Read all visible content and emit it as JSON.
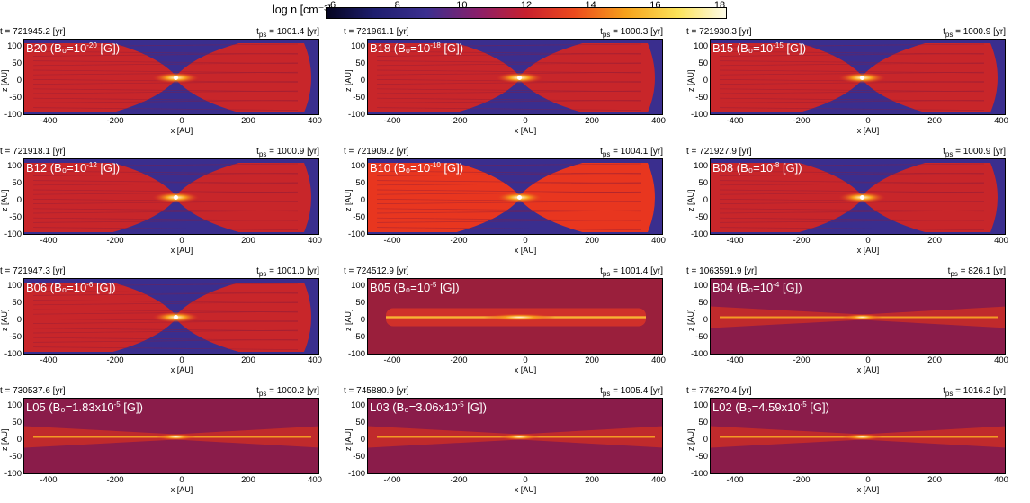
{
  "colorbar": {
    "title": "log n [cm⁻³]",
    "ticks": [
      "6",
      "8",
      "10",
      "12",
      "14",
      "16",
      "18"
    ]
  },
  "axes": {
    "xlabel": "x [AU]",
    "ylabel": "z [AU]",
    "xticks": [
      "-400",
      "-200",
      "0",
      "200",
      "400"
    ],
    "yticks": [
      "100",
      "50",
      "0",
      "-50",
      "-100"
    ]
  },
  "panels": [
    {
      "id": "B20",
      "label": "B20 (B₀=10",
      "exp": "-20",
      "tail": " [G])",
      "time": "t = 721945.2 [yr]",
      "tps": "1001.4 [yr]",
      "style": "hour"
    },
    {
      "id": "B18",
      "label": "B18 (B₀=10",
      "exp": "-18",
      "tail": " [G])",
      "time": "t = 721961.1 [yr]",
      "tps": "1000.3 [yr]",
      "style": "hour"
    },
    {
      "id": "B15",
      "label": "B15 (B₀=10",
      "exp": "-15",
      "tail": " [G])",
      "time": "t = 721930.3 [yr]",
      "tps": "1000.9 [yr]",
      "style": "hour"
    },
    {
      "id": "B12",
      "label": "B12 (B₀=10",
      "exp": "-12",
      "tail": " [G])",
      "time": "t = 721918.1 [yr]",
      "tps": "1000.9 [yr]",
      "style": "hour"
    },
    {
      "id": "B10",
      "label": "B10 (B₀=10",
      "exp": "-10",
      "tail": " [G])",
      "time": "t = 721909.2 [yr]",
      "tps": "1004.1 [yr]",
      "style": "bright"
    },
    {
      "id": "B08",
      "label": "B08 (B₀=10",
      "exp": "-8",
      "tail": " [G])",
      "time": "t = 721927.9 [yr]",
      "tps": "1000.9 [yr]",
      "style": "hour"
    },
    {
      "id": "B06",
      "label": "B06 (B₀=10",
      "exp": "-6",
      "tail": " [G])",
      "time": "t = 721947.3 [yr]",
      "tps": "1001.0 [yr]",
      "style": "hour"
    },
    {
      "id": "B05",
      "label": "B05 (B₀=10",
      "exp": "-5",
      "tail": " [G])",
      "time": "t = 724512.9 [yr]",
      "tps": "1001.4 [yr]",
      "style": "disk"
    },
    {
      "id": "B04",
      "label": "B04 (B₀=10",
      "exp": "-4",
      "tail": " [G])",
      "time": "t = 1063591.9 [yr]",
      "tps": "826.1 [yr]",
      "style": "thin"
    },
    {
      "id": "L05",
      "label": "L05  (B₀=1.83x10",
      "exp": "-5",
      "tail": " [G])",
      "time": "t = 730537.6 [yr]",
      "tps": "1000.2 [yr]",
      "style": "thin"
    },
    {
      "id": "L03",
      "label": "L03  (B₀=3.06x10",
      "exp": "-5",
      "tail": " [G])",
      "time": "t = 745880.9 [yr]",
      "tps": "1005.4 [yr]",
      "style": "thin"
    },
    {
      "id": "L02",
      "label": "L02  (B₀=4.59x10",
      "exp": "-5",
      "tail": " [G])",
      "time": "t = 776270.4 [yr]",
      "tps": "1016.2 [yr]",
      "style": "thin"
    }
  ]
}
